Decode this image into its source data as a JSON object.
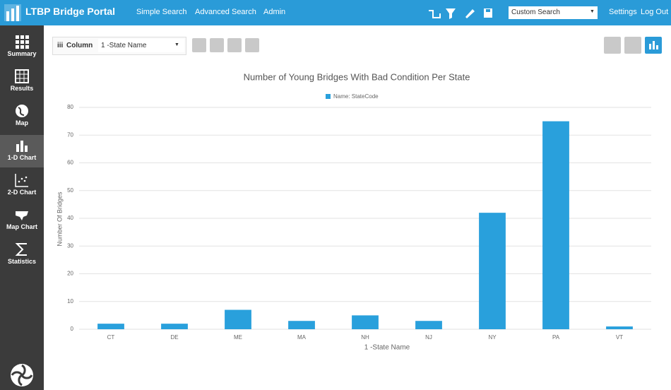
{
  "header": {
    "title": "LTBP Bridge Portal",
    "nav": [
      "Simple Search",
      "Advanced Search",
      "Admin"
    ],
    "search_select": "Custom Search",
    "links": [
      "Settings",
      "Log Out"
    ]
  },
  "sidebar": {
    "items": [
      "Summary",
      "Results",
      "Map",
      "1-D Chart",
      "2-D Chart",
      "Map Chart",
      "Statistics"
    ]
  },
  "toolbar": {
    "column_label": "Column",
    "column_select": "1 -State Name"
  },
  "chart_data": {
    "type": "bar",
    "title": "Number of Young Bridges With Bad Condition Per State",
    "xlabel": "1 -State Name",
    "ylabel": "Number Of Bridges",
    "categories": [
      "CT",
      "DE",
      "ME",
      "MA",
      "NH",
      "NJ",
      "NY",
      "PA",
      "VT"
    ],
    "series": [
      {
        "name": "Name: StateCode",
        "color": "#29a0dc",
        "values": [
          2,
          2,
          7,
          3,
          5,
          3,
          42,
          75,
          1
        ]
      }
    ],
    "ylim": [
      0,
      80
    ],
    "yticks": [
      0,
      10,
      20,
      30,
      40,
      50,
      60,
      70,
      80
    ],
    "grid": true
  }
}
